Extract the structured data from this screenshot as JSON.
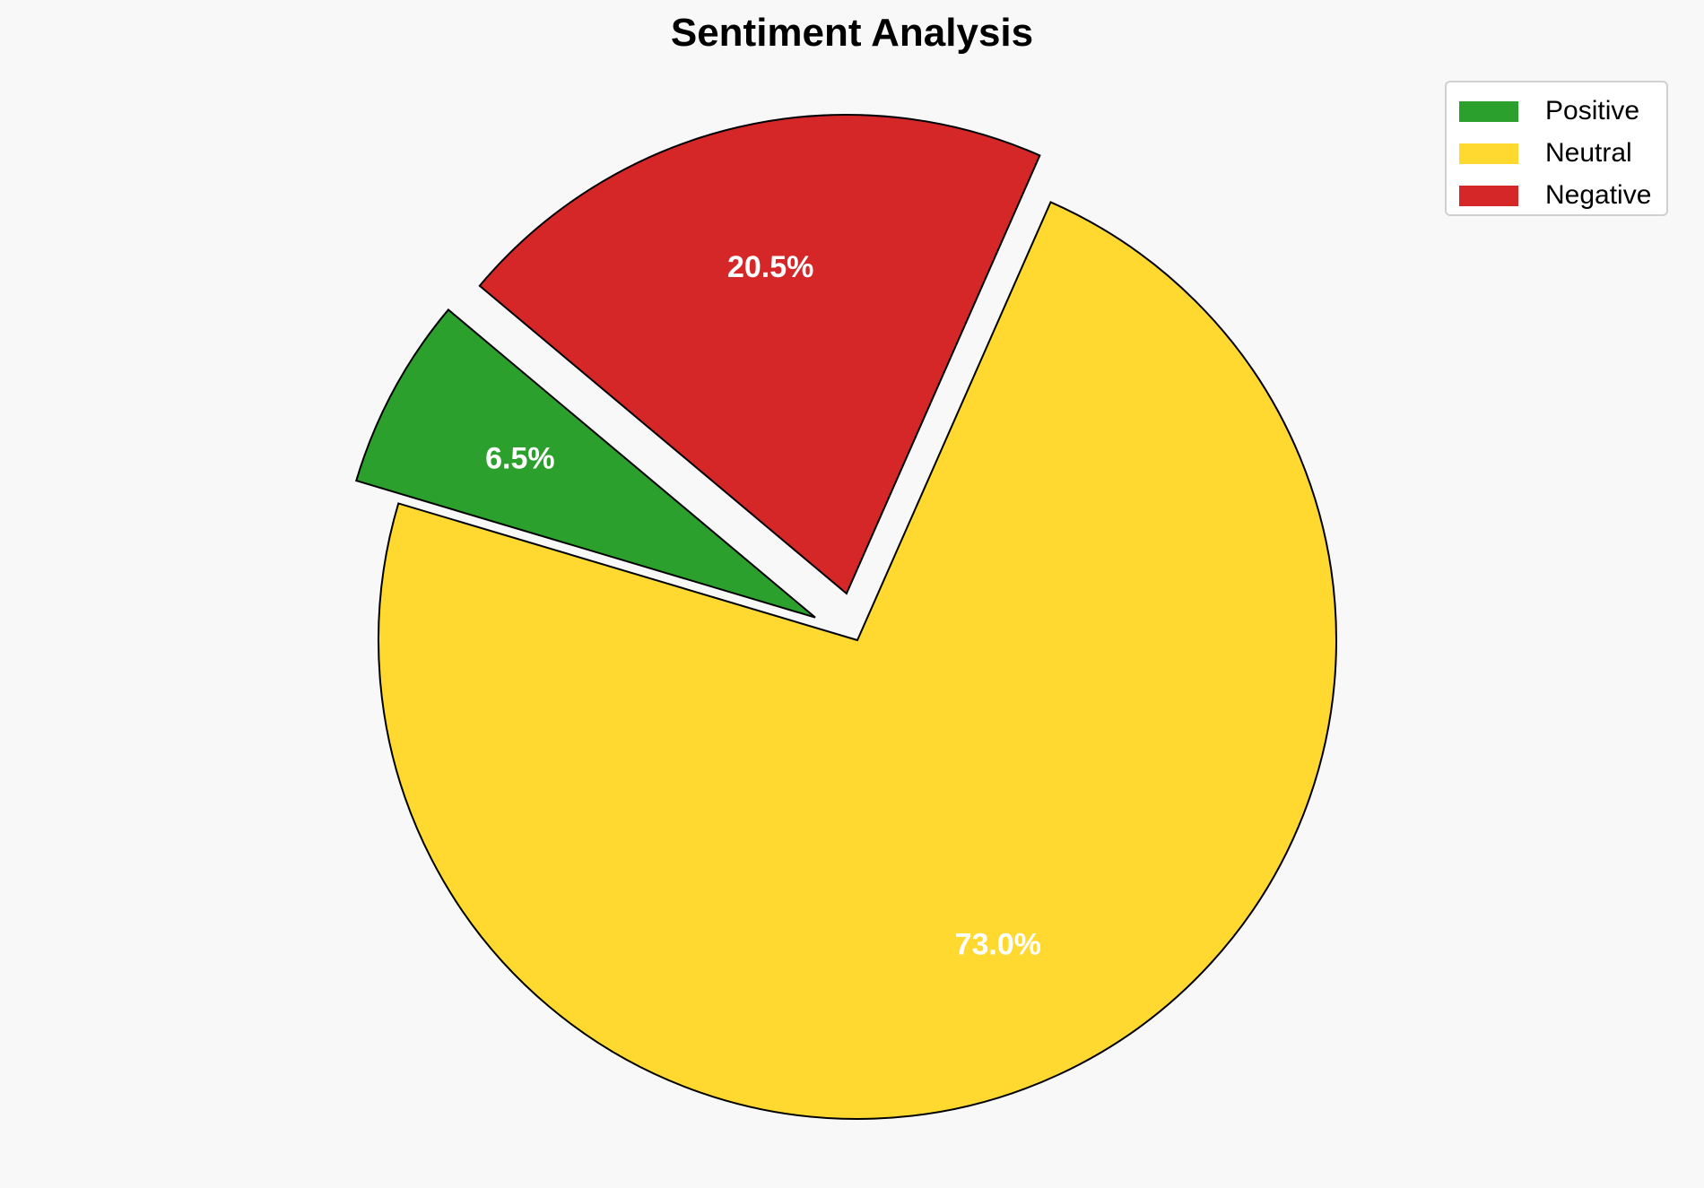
{
  "chart_data": {
    "type": "pie",
    "title": "Sentiment Analysis",
    "categories": [
      "Positive",
      "Neutral",
      "Negative"
    ],
    "values": [
      6.5,
      73.0,
      20.5
    ],
    "labels": [
      "6.5%",
      "73.0%",
      "20.5%"
    ],
    "colors": [
      "#2ca02c",
      "#ffd92f",
      "#d62728"
    ],
    "explode": [
      0.1,
      0,
      0.1
    ],
    "start_angle": 140,
    "direction": "counterclockwise",
    "edge_color": "#000000",
    "label_color": "#ffffff",
    "legend_placement": "top-right"
  }
}
